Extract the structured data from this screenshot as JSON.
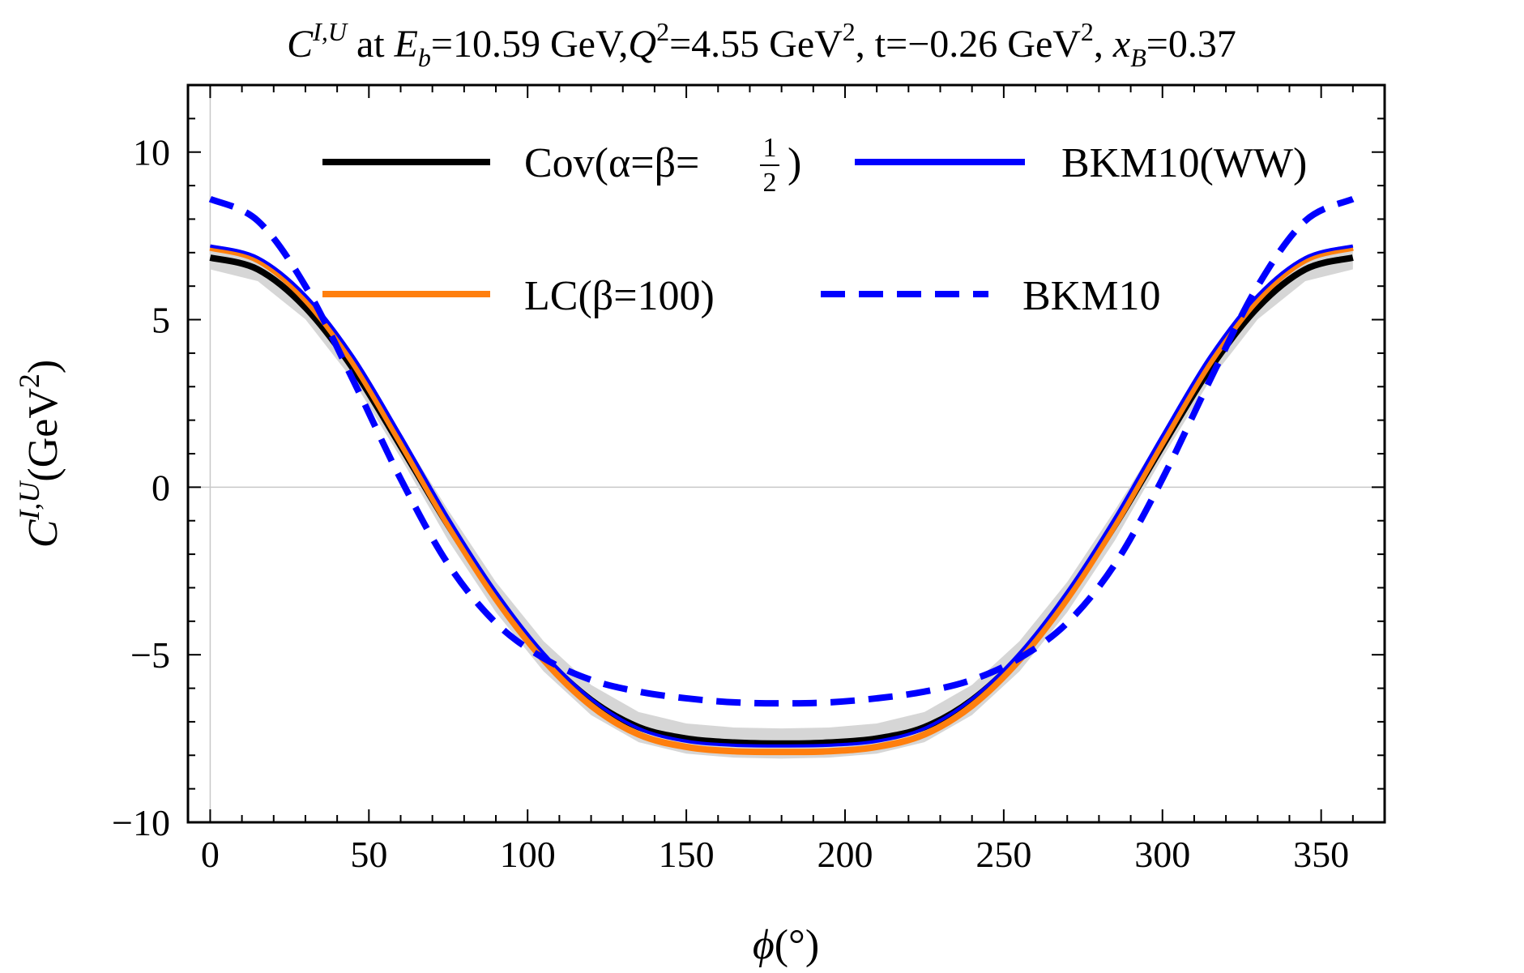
{
  "chart_data": {
    "type": "line",
    "title": {
      "sym": "C",
      "sym_sup": "I,U",
      "at": " at ",
      "eb_sym": "E",
      "eb_sub": "b",
      "eb_val": "=10.59 GeV,",
      "q_sym": "Q",
      "q_sup": "2",
      "q_val": "=4.55 GeV",
      "q_unit_sup": "2",
      "t_val": ", t=−0.26 GeV",
      "t_unit_sup": "2",
      "xb_sep": ", ",
      "xb_sym": "x",
      "xb_sub": "B",
      "xb_val": "=0.37"
    },
    "xlabel": {
      "sym": "ϕ",
      "unit": "(°)"
    },
    "ylabel": {
      "sym": "C",
      "sup": "I,U",
      "unit": "(GeV",
      "unit_sup": "2",
      "close": ")"
    },
    "xlim": [
      -7,
      370
    ],
    "ylim": [
      -10,
      12
    ],
    "x_ticks": [
      0,
      50,
      100,
      150,
      200,
      250,
      300,
      350
    ],
    "x_tick_labels": [
      "0",
      "50",
      "100",
      "150",
      "200",
      "250",
      "300",
      "350"
    ],
    "y_ticks": [
      -10,
      -5,
      0,
      5,
      10
    ],
    "y_tick_labels": [
      "−10",
      "−5",
      "0",
      "5",
      "10"
    ],
    "x": [
      0,
      15,
      30,
      45,
      60,
      75,
      90,
      105,
      120,
      135,
      150,
      165,
      180,
      195,
      210,
      225,
      240,
      255,
      270,
      285,
      300,
      315,
      330,
      345,
      360
    ],
    "series": [
      {
        "name": "Cov",
        "label_text": "Cov(α=β=",
        "frac_num": "1",
        "frac_den": "2",
        "label_close": ")",
        "color": "#000000",
        "style": "solid",
        "band": {
          "color": "#d6d6d6",
          "half_width_peak": 0.35,
          "half_width_trough": 0.45
        },
        "values": [
          6.85,
          6.5,
          5.36,
          3.54,
          1.23,
          -1.14,
          -3.28,
          -5.04,
          -6.35,
          -7.16,
          -7.5,
          -7.62,
          -7.65,
          -7.62,
          -7.5,
          -7.16,
          -6.35,
          -5.04,
          -3.28,
          -1.14,
          1.23,
          3.54,
          5.36,
          6.5,
          6.85
        ]
      },
      {
        "name": "LC",
        "label_text": "LC(β=100)",
        "color": "#ff7f0e",
        "style": "solid",
        "values": [
          7.15,
          6.78,
          5.6,
          3.72,
          1.33,
          -1.13,
          -3.33,
          -5.15,
          -6.52,
          -7.38,
          -7.75,
          -7.88,
          -7.9,
          -7.88,
          -7.75,
          -7.38,
          -6.52,
          -5.15,
          -3.33,
          -1.13,
          1.33,
          3.72,
          5.6,
          6.78,
          7.15
        ]
      },
      {
        "name": "BKM10(WW)",
        "label_text": "BKM10(WW)",
        "color": "#0000ff",
        "style": "solid",
        "values": [
          7.2,
          6.85,
          5.72,
          3.9,
          1.54,
          -0.92,
          -3.12,
          -4.95,
          -6.32,
          -7.2,
          -7.58,
          -7.7,
          -7.72,
          -7.7,
          -7.58,
          -7.2,
          -6.32,
          -4.95,
          -3.12,
          -0.92,
          1.54,
          3.9,
          5.72,
          6.85,
          7.2
        ]
      },
      {
        "name": "BKM10",
        "label_text": "BKM10",
        "color": "#0000ff",
        "style": "dashed",
        "values": [
          8.6,
          7.95,
          6.0,
          3.2,
          0.25,
          -2.3,
          -4.05,
          -5.1,
          -5.75,
          -6.1,
          -6.3,
          -6.42,
          -6.45,
          -6.42,
          -6.3,
          -6.1,
          -5.75,
          -5.1,
          -4.05,
          -2.3,
          0.25,
          3.2,
          6.0,
          7.95,
          8.6
        ]
      }
    ]
  }
}
